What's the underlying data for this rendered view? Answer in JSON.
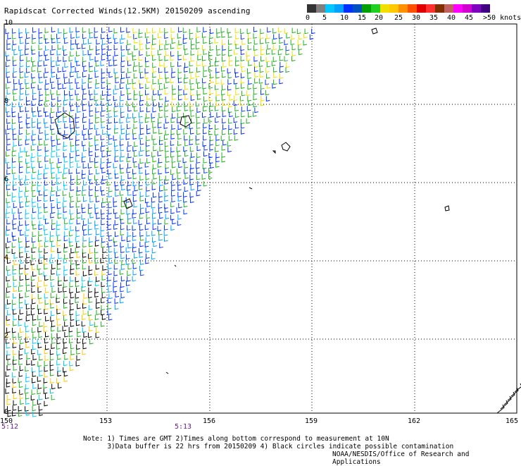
{
  "title": "Rapidscat Corrected Winds(12.5KM) 20150209 ascending",
  "legend": {
    "labels": [
      "0",
      "5",
      "10",
      "15",
      "20",
      "25",
      "30",
      "35",
      "40",
      "45",
      ">50 knots"
    ],
    "colors": [
      "#333333",
      "#7f7f7f",
      "#00c8ff",
      "#00a0ff",
      "#0030ff",
      "#0050c0",
      "#00a000",
      "#20d020",
      "#f0e000",
      "#ffc800",
      "#ff9000",
      "#ff5000",
      "#e00000",
      "#ff3030",
      "#803000",
      "#c06060",
      "#ff00ff",
      "#d000d0",
      "#8000c0",
      "#400080"
    ]
  },
  "axes": {
    "x_ticks": [
      "150",
      "153",
      "156",
      "159",
      "162",
      "165"
    ],
    "y_ticks": [
      "10",
      "8",
      "6",
      "4",
      "2",
      "0"
    ],
    "x_range": [
      150,
      165
    ],
    "y_range": [
      0,
      10
    ]
  },
  "time_labels": [
    "5:12",
    "5:13"
  ],
  "notes": {
    "line1": "Note: 1) Times are GMT 2)Times along bottom correspond to measurement at 10N",
    "line2": "      3)Data buffer is 22 hrs from 20150209 4) Black circles indicate possible contamination"
  },
  "credit": "NOAA/NESDIS/Office of Research and Applications"
}
